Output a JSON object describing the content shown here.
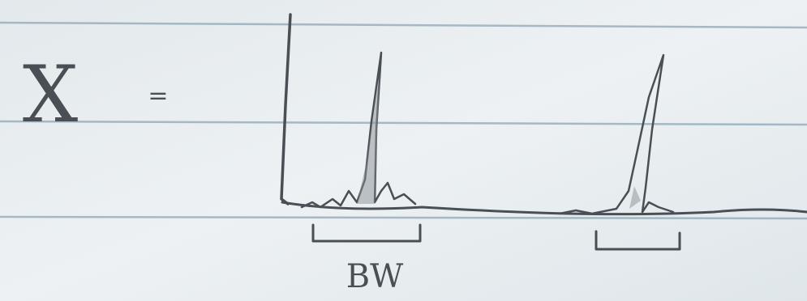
{
  "symbol": "X",
  "operator": "=",
  "label": "BW"
}
